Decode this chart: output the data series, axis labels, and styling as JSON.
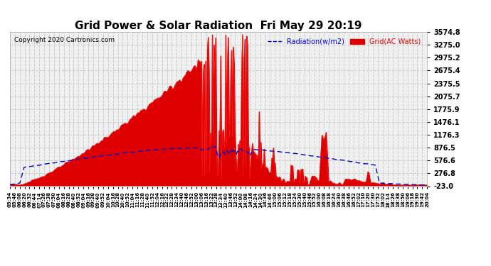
{
  "title": "Grid Power & Solar Radiation  Fri May 29 20:19",
  "copyright": "Copyright 2020 Cartronics.com",
  "legend_radiation": "Radiation(w/m2)",
  "legend_grid": "Grid(AC Watts)",
  "y_min": -23.0,
  "y_max": 3574.8,
  "y_ticks": [
    3574.8,
    3275.0,
    2975.2,
    2675.4,
    2375.5,
    2075.7,
    1775.9,
    1476.1,
    1176.3,
    876.5,
    576.6,
    276.8,
    -23.0
  ],
  "background_color": "#ffffff",
  "plot_bg_color": "#f0f0f0",
  "grid_color": "#cccccc",
  "fill_color": "#dd0000",
  "line_color": "#0000cc",
  "n_points": 500
}
